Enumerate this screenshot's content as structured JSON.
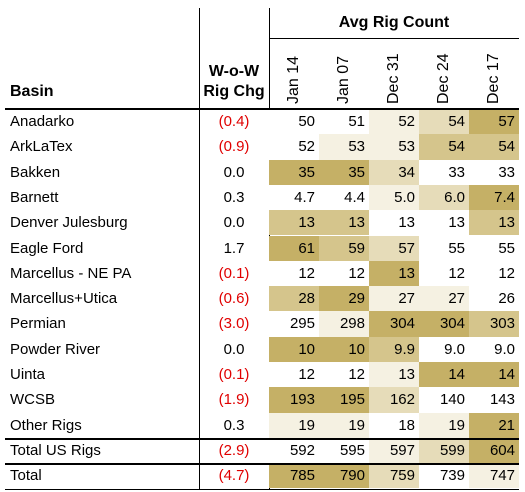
{
  "header": {
    "group_title": "Avg Rig Count",
    "basin_label": "Basin",
    "wow_label_line1": "W-o-W",
    "wow_label_line2": "Rig Chg",
    "columns": [
      "Jan 14",
      "Jan 07",
      "Dec 31",
      "Dec 24",
      "Dec 17"
    ]
  },
  "colors": {
    "negative_text": "#e00000",
    "heat_scale": [
      "#ffffff",
      "#f5f1e2",
      "#e6dcb9",
      "#d5c58c",
      "#c5b066"
    ]
  },
  "rows": [
    {
      "basin": "Anadarko",
      "wow": "(0.4)",
      "negative": true,
      "values": [
        "50",
        "51",
        "52",
        "54",
        "57"
      ],
      "shades": [
        0,
        0,
        1,
        2,
        4
      ]
    },
    {
      "basin": "ArkLaTex",
      "wow": "(0.9)",
      "negative": true,
      "values": [
        "52",
        "53",
        "53",
        "54",
        "54"
      ],
      "shades": [
        0,
        1,
        1,
        3,
        3
      ]
    },
    {
      "basin": "Bakken",
      "wow": "0.0",
      "negative": false,
      "values": [
        "35",
        "35",
        "34",
        "33",
        "33"
      ],
      "shades": [
        4,
        4,
        2,
        0,
        0
      ]
    },
    {
      "basin": "Barnett",
      "wow": "0.3",
      "negative": false,
      "values": [
        "4.7",
        "4.4",
        "5.0",
        "6.0",
        "7.4"
      ],
      "shades": [
        0,
        0,
        1,
        2,
        4
      ]
    },
    {
      "basin": "Denver Julesburg",
      "wow": "0.0",
      "negative": false,
      "values": [
        "13",
        "13",
        "13",
        "13",
        "13"
      ],
      "shades": [
        3,
        3,
        0,
        0,
        3
      ]
    },
    {
      "basin": "Eagle Ford",
      "wow": "1.7",
      "negative": false,
      "values": [
        "61",
        "59",
        "57",
        "55",
        "55"
      ],
      "shades": [
        4,
        3,
        2,
        0,
        0
      ]
    },
    {
      "basin": "Marcellus - NE PA",
      "wow": "(0.1)",
      "negative": true,
      "values": [
        "12",
        "12",
        "13",
        "12",
        "12"
      ],
      "shades": [
        0,
        0,
        4,
        0,
        0
      ]
    },
    {
      "basin": "Marcellus+Utica",
      "wow": "(0.6)",
      "negative": true,
      "values": [
        "28",
        "29",
        "27",
        "27",
        "26"
      ],
      "shades": [
        3,
        4,
        1,
        1,
        0
      ]
    },
    {
      "basin": "Permian",
      "wow": "(3.0)",
      "negative": true,
      "values": [
        "295",
        "298",
        "304",
        "304",
        "303"
      ],
      "shades": [
        0,
        1,
        4,
        4,
        3
      ]
    },
    {
      "basin": "Powder River",
      "wow": "0.0",
      "negative": false,
      "values": [
        "10",
        "10",
        "9.9",
        "9.0",
        "9.0"
      ],
      "shades": [
        4,
        4,
        3,
        0,
        0
      ]
    },
    {
      "basin": "Uinta",
      "wow": "(0.1)",
      "negative": true,
      "values": [
        "12",
        "12",
        "13",
        "14",
        "14"
      ],
      "shades": [
        0,
        0,
        1,
        4,
        4
      ]
    },
    {
      "basin": "WCSB",
      "wow": "(1.9)",
      "negative": true,
      "values": [
        "193",
        "195",
        "162",
        "140",
        "143"
      ],
      "shades": [
        4,
        4,
        2,
        0,
        0
      ]
    },
    {
      "basin": "Other Rigs",
      "wow": "0.3",
      "negative": false,
      "values": [
        "19",
        "19",
        "18",
        "19",
        "21"
      ],
      "shades": [
        1,
        1,
        0,
        1,
        4
      ]
    },
    {
      "basin": "Total US Rigs",
      "wow": "(2.9)",
      "negative": true,
      "values": [
        "592",
        "595",
        "597",
        "599",
        "604"
      ],
      "shades": [
        0,
        0,
        1,
        2,
        4
      ]
    },
    {
      "basin": "Total",
      "wow": "(4.7)",
      "negative": true,
      "values": [
        "785",
        "790",
        "759",
        "739",
        "747"
      ],
      "shades": [
        4,
        4,
        2,
        0,
        1
      ]
    }
  ]
}
